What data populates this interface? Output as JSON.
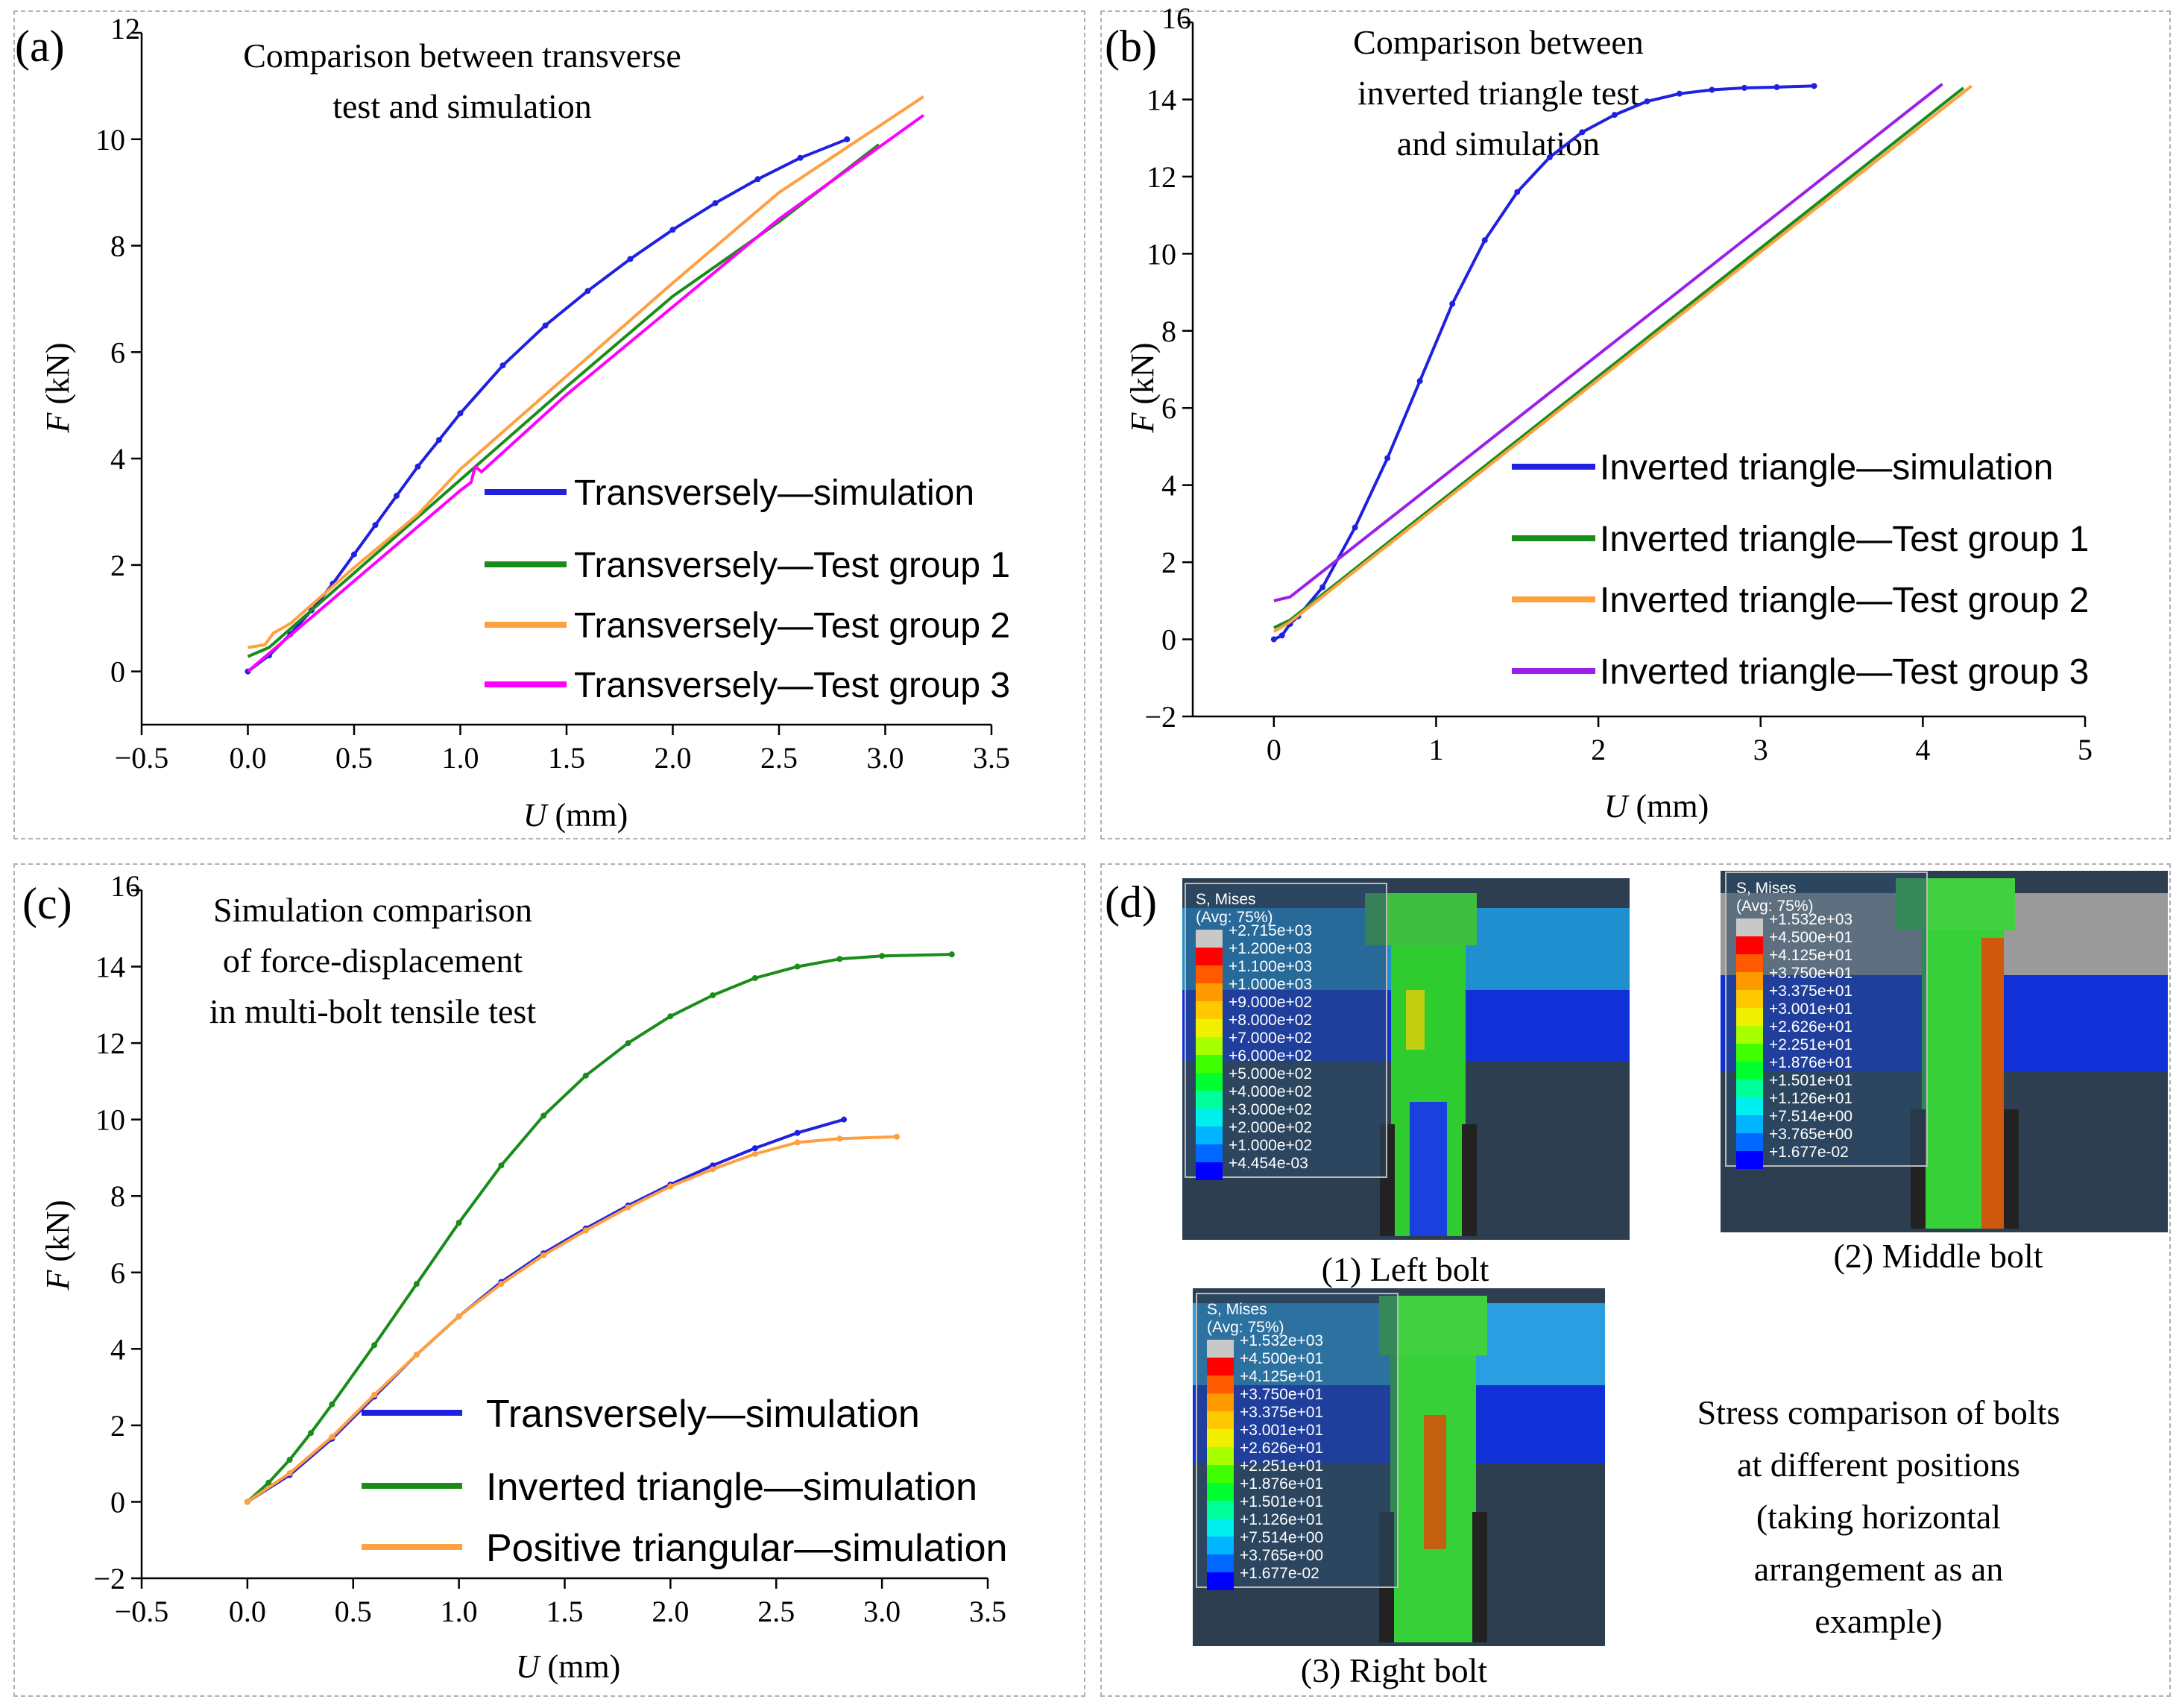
{
  "chart_data": [
    {
      "id": "a",
      "type": "line",
      "panel_label": "(a)",
      "title_lines": [
        "Comparison between transverse",
        "test and simulation"
      ],
      "xlabel_var": "U",
      "xlabel_unit": " (mm)",
      "ylabel_var": "F",
      "ylabel_unit": " (kN)",
      "xlim": [
        -0.5,
        3.5
      ],
      "ylim": [
        -1,
        12
      ],
      "xticks": [
        -0.5,
        0.0,
        0.5,
        1.0,
        1.5,
        2.0,
        2.5,
        3.0,
        3.5
      ],
      "xtick_labels": [
        "−0.5",
        "0.0",
        "0.5",
        "1.0",
        "1.5",
        "2.0",
        "2.5",
        "3.0",
        "3.5"
      ],
      "yticks": [
        0,
        2,
        4,
        6,
        8,
        10,
        12
      ],
      "ytick_labels": [
        "0",
        "2",
        "4",
        "6",
        "8",
        "10",
        "12"
      ],
      "series": [
        {
          "name": "Transversely—simulation",
          "color": "#2020e0",
          "markers": true,
          "x": [
            0,
            0.1,
            0.2,
            0.3,
            0.4,
            0.5,
            0.6,
            0.7,
            0.8,
            0.9,
            1.0,
            1.2,
            1.4,
            1.6,
            1.8,
            2.0,
            2.2,
            2.4,
            2.6,
            2.82
          ],
          "y": [
            0,
            0.3,
            0.7,
            1.15,
            1.65,
            2.2,
            2.75,
            3.3,
            3.85,
            4.35,
            4.85,
            5.75,
            6.5,
            7.15,
            7.75,
            8.3,
            8.8,
            9.25,
            9.65,
            10.0
          ]
        },
        {
          "name": "Transversely—Test group 1",
          "color": "#1a8c1a",
          "markers": false,
          "x": [
            0,
            0.1,
            0.2,
            0.5,
            1.0,
            1.5,
            2.0,
            2.5,
            2.97
          ],
          "y": [
            0.28,
            0.45,
            0.8,
            1.85,
            3.6,
            5.35,
            7.05,
            8.45,
            9.9
          ]
        },
        {
          "name": "Transversely—Test group 2",
          "color": "#ffa040",
          "markers": false,
          "x": [
            0,
            0.08,
            0.12,
            0.2,
            0.5,
            0.8,
            1.0,
            1.5,
            2.0,
            2.5,
            3.18
          ],
          "y": [
            0.45,
            0.5,
            0.72,
            0.9,
            1.95,
            2.95,
            3.8,
            5.55,
            7.3,
            9.0,
            10.8
          ]
        },
        {
          "name": "Transversely—Test group 3",
          "color": "#ff00ff",
          "markers": false,
          "x": [
            0,
            0.5,
            1.0,
            1.05,
            1.07,
            1.1,
            1.5,
            2.0,
            2.5,
            3.18
          ],
          "y": [
            0,
            1.7,
            3.4,
            3.55,
            3.85,
            3.75,
            5.2,
            6.85,
            8.5,
            10.45
          ]
        }
      ]
    },
    {
      "id": "b",
      "type": "line",
      "panel_label": "(b)",
      "title_lines": [
        "Comparison between",
        "inverted triangle test",
        "and simulation"
      ],
      "xlabel_var": "U",
      "xlabel_unit": " (mm)",
      "ylabel_var": "F",
      "ylabel_unit": " (kN)",
      "xlim": [
        -0.5,
        5
      ],
      "ylim": [
        -2,
        16
      ],
      "xticks": [
        0,
        1,
        2,
        3,
        4,
        5
      ],
      "xtick_labels": [
        "0",
        "1",
        "2",
        "3",
        "4",
        "5"
      ],
      "yticks": [
        -2,
        0,
        2,
        4,
        6,
        8,
        10,
        12,
        14,
        16
      ],
      "ytick_labels": [
        "−2",
        "0",
        "2",
        "4",
        "6",
        "8",
        "10",
        "12",
        "14",
        "16"
      ],
      "series": [
        {
          "name": "Inverted triangle—simulation",
          "color": "#2020e0",
          "markers": true,
          "x": [
            0,
            0.05,
            0.1,
            0.15,
            0.3,
            0.5,
            0.7,
            0.9,
            1.1,
            1.3,
            1.5,
            1.7,
            1.9,
            2.1,
            2.3,
            2.5,
            2.7,
            2.9,
            3.1,
            3.33
          ],
          "y": [
            0,
            0.1,
            0.4,
            0.6,
            1.35,
            2.9,
            4.7,
            6.7,
            8.7,
            10.35,
            11.6,
            12.5,
            13.15,
            13.6,
            13.95,
            14.15,
            14.25,
            14.3,
            14.32,
            14.35
          ]
        },
        {
          "name": "Inverted triangle—Test group 1",
          "color": "#1a8c1a",
          "markers": false,
          "x": [
            0,
            0.1,
            4.25
          ],
          "y": [
            0.3,
            0.5,
            14.3
          ]
        },
        {
          "name": "Inverted triangle—Test group 2",
          "color": "#ffa040",
          "markers": false,
          "x": [
            0,
            0.1,
            4.3
          ],
          "y": [
            0.2,
            0.45,
            14.35
          ]
        },
        {
          "name": "Inverted triangle—Test group 3",
          "color": "#9b1fe8",
          "markers": false,
          "x": [
            0,
            0.1,
            4.12
          ],
          "y": [
            1.0,
            1.1,
            14.4
          ]
        }
      ]
    },
    {
      "id": "c",
      "type": "line",
      "panel_label": "(c)",
      "title_lines": [
        "Simulation comparison",
        "of force-displacement",
        "in multi-bolt tensile test"
      ],
      "xlabel_var": "U",
      "xlabel_unit": " (mm)",
      "ylabel_var": "F",
      "ylabel_unit": " (kN)",
      "xlim": [
        -0.5,
        3.5
      ],
      "ylim": [
        -2,
        16
      ],
      "xticks": [
        -0.5,
        0.0,
        0.5,
        1.0,
        1.5,
        2.0,
        2.5,
        3.0,
        3.5
      ],
      "xtick_labels": [
        "−0.5",
        "0.0",
        "0.5",
        "1.0",
        "1.5",
        "2.0",
        "2.5",
        "3.0",
        "3.5"
      ],
      "yticks": [
        -2,
        0,
        2,
        4,
        6,
        8,
        10,
        12,
        14,
        16
      ],
      "ytick_labels": [
        "−2",
        "0",
        "2",
        "4",
        "6",
        "8",
        "10",
        "12",
        "14",
        "16"
      ],
      "series": [
        {
          "name": "Transversely—simulation",
          "color": "#2020e0",
          "markers": true,
          "x": [
            0,
            0.2,
            0.4,
            0.6,
            0.8,
            1.0,
            1.2,
            1.4,
            1.6,
            1.8,
            2.0,
            2.2,
            2.4,
            2.6,
            2.82
          ],
          "y": [
            0,
            0.7,
            1.65,
            2.75,
            3.85,
            4.85,
            5.75,
            6.5,
            7.15,
            7.75,
            8.3,
            8.8,
            9.25,
            9.65,
            10.0
          ]
        },
        {
          "name": "Inverted triangle—simulation",
          "color": "#1a8c1a",
          "markers": true,
          "x": [
            0,
            0.1,
            0.2,
            0.3,
            0.4,
            0.6,
            0.8,
            1.0,
            1.2,
            1.4,
            1.6,
            1.8,
            2.0,
            2.2,
            2.4,
            2.6,
            2.8,
            3.0,
            3.33
          ],
          "y": [
            0,
            0.5,
            1.1,
            1.8,
            2.55,
            4.1,
            5.7,
            7.3,
            8.8,
            10.1,
            11.15,
            12.0,
            12.7,
            13.25,
            13.7,
            14.0,
            14.2,
            14.28,
            14.32
          ]
        },
        {
          "name": "Positive triangular—simulation",
          "color": "#ffa040",
          "markers": true,
          "x": [
            0,
            0.2,
            0.4,
            0.6,
            0.8,
            1.0,
            1.2,
            1.4,
            1.6,
            1.8,
            2.0,
            2.2,
            2.4,
            2.6,
            2.8,
            3.07
          ],
          "y": [
            0,
            0.75,
            1.7,
            2.8,
            3.85,
            4.85,
            5.7,
            6.45,
            7.1,
            7.7,
            8.25,
            8.7,
            9.1,
            9.4,
            9.5,
            9.55
          ]
        }
      ]
    }
  ],
  "panel_d": {
    "panel_label": "(d)",
    "caption_lines": [
      "Stress comparison of bolts",
      "at different positions",
      "(taking horizontal",
      "arrangement as an",
      "example)"
    ],
    "bolts": [
      {
        "caption": "(1) Left bolt",
        "legend_title": "S, Mises",
        "legend_avg": "(Avg: 75%)",
        "legend_values": [
          "+2.715e+03",
          "+1.200e+03",
          "+1.100e+03",
          "+1.000e+03",
          "+9.000e+02",
          "+8.000e+02",
          "+7.000e+02",
          "+6.000e+02",
          "+5.000e+02",
          "+4.000e+02",
          "+3.000e+02",
          "+2.000e+02",
          "+1.000e+02",
          "+4.454e-03"
        ]
      },
      {
        "caption": "(2) Middle bolt",
        "legend_title": "S, Mises",
        "legend_avg": "(Avg: 75%)",
        "legend_values": [
          "+1.532e+03",
          "+4.500e+01",
          "+4.125e+01",
          "+3.750e+01",
          "+3.375e+01",
          "+3.001e+01",
          "+2.626e+01",
          "+2.251e+01",
          "+1.876e+01",
          "+1.501e+01",
          "+1.126e+01",
          "+7.514e+00",
          "+3.765e+00",
          "+1.677e-02"
        ]
      },
      {
        "caption": "(3) Right bolt",
        "legend_title": "S, Mises",
        "legend_avg": "(Avg: 75%)",
        "legend_values": [
          "+1.532e+03",
          "+4.500e+01",
          "+4.125e+01",
          "+3.750e+01",
          "+3.375e+01",
          "+3.001e+01",
          "+2.626e+01",
          "+2.251e+01",
          "+1.876e+01",
          "+1.501e+01",
          "+1.126e+01",
          "+7.514e+00",
          "+3.765e+00",
          "+1.677e-02"
        ]
      }
    ],
    "contour_colors": [
      "#c8c8c8",
      "#ff0000",
      "#ff5a00",
      "#ff9900",
      "#ffc800",
      "#f0f000",
      "#a8ff00",
      "#40ff00",
      "#00ff30",
      "#00ff9a",
      "#00f0f0",
      "#00b4ff",
      "#0068ff",
      "#0000ff"
    ]
  }
}
